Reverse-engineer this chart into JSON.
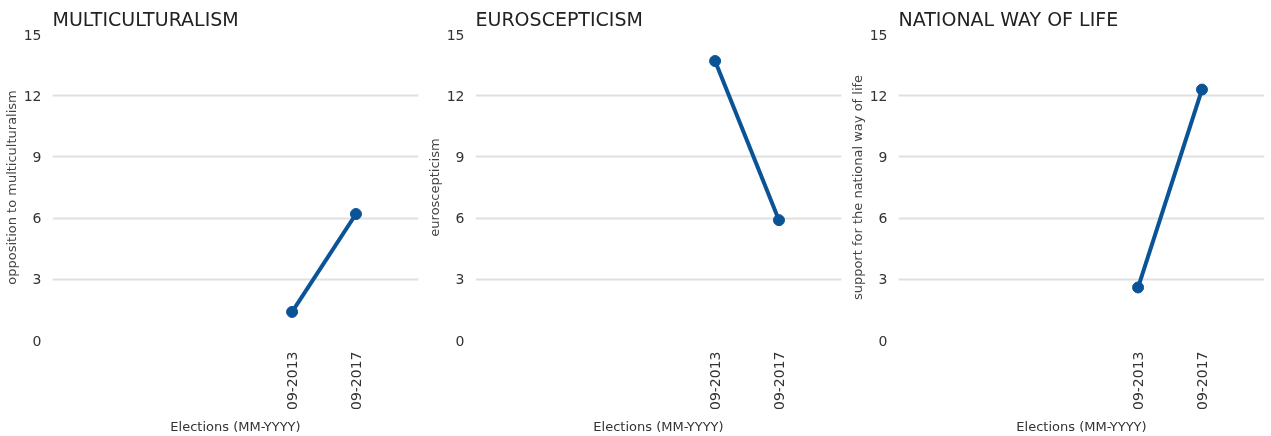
{
  "chart_data": [
    {
      "type": "line",
      "title": "MULTICULTURALISM",
      "ylabel": "opposition to multiculturalism",
      "xlabel": "Elections (MM-YYYY)",
      "x": [
        "2013-09",
        "2017-09"
      ],
      "xlim": [
        "1998-09",
        "2021-08"
      ],
      "xticks": [
        {
          "value": "2013-09",
          "label": "09-2013"
        },
        {
          "value": "2017-09",
          "label": "09-2017"
        }
      ],
      "ylim": [
        0,
        15
      ],
      "yticks": [
        0,
        3,
        6,
        9,
        12,
        15
      ],
      "grid": "y",
      "marker": "circle",
      "line_style": "solid",
      "series": [
        {
          "color": "#0a5396",
          "values": [
            1.4,
            6.2
          ]
        }
      ]
    },
    {
      "type": "line",
      "title": "EUROSCEPTICISM",
      "ylabel": "euroscepticism",
      "xlabel": "Elections (MM-YYYY)",
      "x": [
        "2013-09",
        "2017-09"
      ],
      "xlim": [
        "1998-09",
        "2021-08"
      ],
      "xticks": [
        {
          "value": "2013-09",
          "label": "09-2013"
        },
        {
          "value": "2017-09",
          "label": "09-2017"
        }
      ],
      "ylim": [
        0,
        15
      ],
      "yticks": [
        0,
        3,
        6,
        9,
        12,
        15
      ],
      "grid": "y",
      "marker": "circle",
      "line_style": "solid",
      "series": [
        {
          "color": "#0a5396",
          "values": [
            13.7,
            5.9
          ]
        }
      ]
    },
    {
      "type": "line",
      "title": "NATIONAL WAY OF LIFE",
      "ylabel": "support for the national way of life",
      "xlabel": "Elections (MM-YYYY)",
      "x": [
        "2013-09",
        "2017-09"
      ],
      "xlim": [
        "1998-09",
        "2021-08"
      ],
      "xticks": [
        {
          "value": "2013-09",
          "label": "09-2013"
        },
        {
          "value": "2017-09",
          "label": "09-2017"
        }
      ],
      "ylim": [
        0,
        15
      ],
      "yticks": [
        0,
        3,
        6,
        9,
        12,
        15
      ],
      "grid": "y",
      "marker": "circle",
      "line_style": "solid",
      "series": [
        {
          "color": "#0a5396",
          "values": [
            2.6,
            12.3
          ]
        }
      ]
    }
  ]
}
